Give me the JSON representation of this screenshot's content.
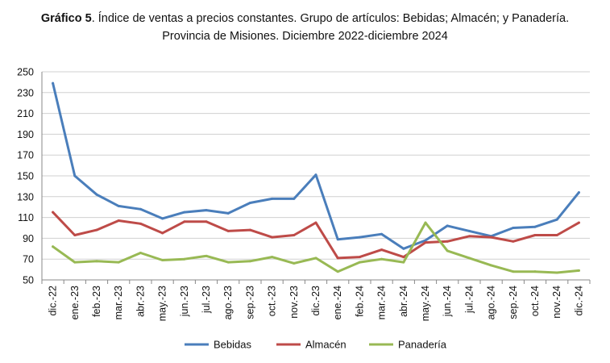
{
  "chart_data": {
    "type": "line",
    "title_bold": "Gráfico 5",
    "title_rest": ". Índice de ventas a precios constantes. Grupo de artículos: Bebidas; Almacén; y Panadería.",
    "subtitle": "Provincia de Misiones. Diciembre 2022-diciembre 2024",
    "xlabel": "",
    "ylabel": "",
    "ylim": [
      50,
      250
    ],
    "yticks": [
      50,
      70,
      90,
      110,
      130,
      150,
      170,
      190,
      210,
      230,
      250
    ],
    "grid": true,
    "legend_position": "bottom",
    "categories": [
      "dic.-22",
      "ene.-23",
      "feb.-23",
      "mar.-23",
      "abr.-23",
      "may.-23",
      "jun.-23",
      "jul.-23",
      "ago.-23",
      "sep.-23",
      "oct.-23",
      "nov.-23",
      "dic.-23",
      "ene.-24",
      "feb.-24",
      "mar.-24",
      "abr.-24",
      "may.-24",
      "jun.-24",
      "jul.-24",
      "ago.-24",
      "sep.-24",
      "oct.-24",
      "nov.-24",
      "dic.-24"
    ],
    "series": [
      {
        "name": "Bebidas",
        "color": "#4a7ebb",
        "values": [
          239,
          150,
          132,
          121,
          118,
          109,
          115,
          117,
          114,
          124,
          128,
          128,
          151,
          89,
          91,
          94,
          80,
          88,
          102,
          97,
          92,
          100,
          101,
          108,
          134
        ]
      },
      {
        "name": "Almacén",
        "color": "#be4b48",
        "values": [
          115,
          93,
          98,
          107,
          104,
          95,
          106,
          106,
          97,
          98,
          91,
          93,
          105,
          71,
          72,
          79,
          72,
          86,
          87,
          92,
          91,
          87,
          93,
          93,
          105
        ]
      },
      {
        "name": "Panadería",
        "color": "#98b954",
        "values": [
          82,
          67,
          68,
          67,
          76,
          69,
          70,
          73,
          67,
          68,
          72,
          66,
          71,
          58,
          67,
          70,
          67,
          105,
          78,
          71,
          64,
          58,
          58,
          57,
          59
        ]
      }
    ]
  }
}
